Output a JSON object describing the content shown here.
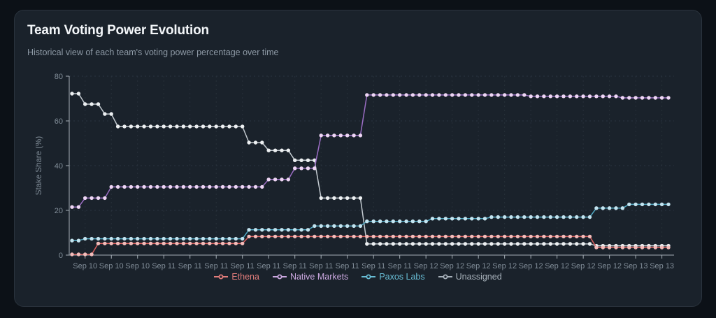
{
  "card": {
    "title": "Team Voting Power Evolution",
    "subtitle": "Historical view of each team's voting power percentage over time"
  },
  "chart_data": {
    "type": "line",
    "title": "Team Voting Power Evolution",
    "xlabel": "",
    "ylabel": "Stake Share (%)",
    "ylim": [
      0,
      80
    ],
    "yticks": [
      0,
      20,
      40,
      60,
      80
    ],
    "grid": true,
    "legend_position": "bottom",
    "n_points": 92,
    "x_tick_start_index": 2,
    "x_tick_every": 4,
    "x_tick_labels": [
      "Sep 10",
      "Sep 10",
      "Sep 10",
      "Sep 11",
      "Sep 11",
      "Sep 11",
      "Sep 11",
      "Sep 11",
      "Sep 11",
      "Sep 11",
      "Sep 11",
      "Sep 11",
      "Sep 11",
      "Sep 12",
      "Sep 12",
      "Sep 12",
      "Sep 12",
      "Sep 12",
      "Sep 12",
      "Sep 12",
      "Sep 12",
      "Sep 13",
      "Sep 13"
    ],
    "series": [
      {
        "name": "Ethena",
        "line_color": "#dd5f5d",
        "dot_color": "#f3bcba",
        "legend_color": "#e27d7b",
        "values": [
          0.3,
          0.3,
          0.3,
          0.3,
          5.2,
          5.2,
          5.2,
          5.2,
          5.2,
          5.2,
          5.2,
          5.2,
          5.2,
          5.2,
          5.2,
          5.2,
          5.2,
          5.2,
          5.2,
          5.2,
          5.2,
          5.2,
          5.2,
          5.2,
          5.2,
          5.2,
          5.2,
          8.3,
          8.3,
          8.3,
          8.3,
          8.3,
          8.3,
          8.3,
          8.3,
          8.3,
          8.3,
          8.3,
          8.3,
          8.3,
          8.3,
          8.3,
          8.3,
          8.3,
          8.3,
          8.3,
          8.3,
          8.3,
          8.3,
          8.3,
          8.3,
          8.3,
          8.3,
          8.3,
          8.3,
          8.3,
          8.3,
          8.3,
          8.3,
          8.3,
          8.3,
          8.3,
          8.3,
          8.3,
          8.3,
          8.3,
          8.3,
          8.3,
          8.3,
          8.3,
          8.3,
          8.3,
          8.3,
          8.3,
          8.3,
          8.3,
          8.3,
          8.3,
          8.3,
          8.3,
          3.4,
          3.4,
          3.4,
          3.4,
          3.4,
          3.4,
          3.4,
          3.4,
          3.4,
          3.4,
          3.4,
          3.4
        ]
      },
      {
        "name": "Native Markets",
        "line_color": "#9b6dc4",
        "dot_color": "#eed6f4",
        "legend_color": "#cba8e0",
        "values": [
          21.5,
          21.5,
          25.5,
          25.5,
          25.5,
          25.5,
          30.5,
          30.5,
          30.5,
          30.5,
          30.5,
          30.5,
          30.5,
          30.5,
          30.5,
          30.5,
          30.5,
          30.5,
          30.5,
          30.5,
          30.5,
          30.5,
          30.5,
          30.5,
          30.5,
          30.5,
          30.5,
          30.5,
          30.5,
          30.5,
          33.8,
          33.8,
          33.8,
          33.8,
          38.8,
          38.8,
          38.8,
          38.8,
          53.5,
          53.5,
          53.5,
          53.5,
          53.5,
          53.5,
          53.5,
          71.6,
          71.6,
          71.6,
          71.6,
          71.6,
          71.6,
          71.6,
          71.6,
          71.6,
          71.6,
          71.6,
          71.6,
          71.6,
          71.6,
          71.6,
          71.6,
          71.6,
          71.6,
          71.6,
          71.6,
          71.6,
          71.6,
          71.6,
          71.6,
          71.6,
          71.0,
          71.0,
          71.0,
          71.0,
          71.0,
          71.0,
          71.0,
          71.0,
          71.0,
          71.0,
          71.0,
          71.0,
          71.0,
          71.0,
          70.3,
          70.3,
          70.3,
          70.3,
          70.3,
          70.3,
          70.3,
          70.3
        ]
      },
      {
        "name": "Paxos Labs",
        "line_color": "#4fa9c4",
        "dot_color": "#c3e4f0",
        "legend_color": "#68bdd5",
        "values": [
          6.5,
          6.5,
          7.3,
          7.3,
          7.3,
          7.3,
          7.3,
          7.3,
          7.3,
          7.3,
          7.3,
          7.3,
          7.3,
          7.3,
          7.3,
          7.3,
          7.3,
          7.3,
          7.3,
          7.3,
          7.3,
          7.3,
          7.3,
          7.3,
          7.3,
          7.3,
          7.3,
          11.3,
          11.3,
          11.3,
          11.3,
          11.3,
          11.3,
          11.3,
          11.3,
          11.3,
          11.3,
          13.0,
          13.0,
          13.0,
          13.0,
          13.0,
          13.0,
          13.0,
          13.0,
          15.1,
          15.1,
          15.1,
          15.1,
          15.1,
          15.1,
          15.1,
          15.1,
          15.1,
          15.1,
          16.3,
          16.3,
          16.3,
          16.3,
          16.3,
          16.3,
          16.3,
          16.3,
          16.3,
          17.0,
          17.0,
          17.0,
          17.0,
          17.0,
          17.0,
          17.0,
          17.0,
          17.0,
          17.0,
          17.0,
          17.0,
          17.0,
          17.0,
          17.0,
          17.0,
          21.0,
          21.0,
          21.0,
          21.0,
          21.0,
          22.7,
          22.7,
          22.7,
          22.7,
          22.7,
          22.7,
          22.7
        ]
      },
      {
        "name": "Unassigned",
        "line_color": "#c3cad0",
        "dot_color": "#edf0f2",
        "legend_color": "#a7b1ba",
        "values": [
          72.2,
          72.2,
          67.5,
          67.5,
          67.5,
          63.1,
          63.1,
          57.5,
          57.5,
          57.5,
          57.5,
          57.5,
          57.5,
          57.5,
          57.5,
          57.5,
          57.5,
          57.5,
          57.5,
          57.5,
          57.5,
          57.5,
          57.5,
          57.5,
          57.5,
          57.5,
          57.5,
          50.3,
          50.3,
          50.3,
          46.8,
          46.8,
          46.8,
          46.8,
          42.4,
          42.4,
          42.4,
          42.4,
          25.5,
          25.5,
          25.5,
          25.5,
          25.5,
          25.5,
          25.5,
          5.0,
          5.0,
          5.0,
          5.0,
          5.0,
          5.0,
          5.0,
          5.0,
          5.0,
          5.0,
          5.0,
          5.0,
          5.0,
          5.0,
          5.0,
          5.0,
          5.0,
          5.0,
          5.0,
          5.0,
          5.0,
          5.0,
          5.0,
          5.0,
          5.0,
          5.0,
          5.0,
          5.0,
          5.0,
          5.0,
          5.0,
          5.0,
          5.0,
          5.0,
          5.0,
          4.2,
          4.2,
          4.2,
          4.2,
          4.2,
          4.2,
          4.2,
          4.2,
          4.2,
          4.2,
          4.2,
          4.2
        ]
      }
    ],
    "style": {
      "axis_color": "#a6afb7",
      "grid_color": "#2a3440",
      "tick_text_color": "#818d98",
      "card_bg": "#1a222b"
    }
  }
}
